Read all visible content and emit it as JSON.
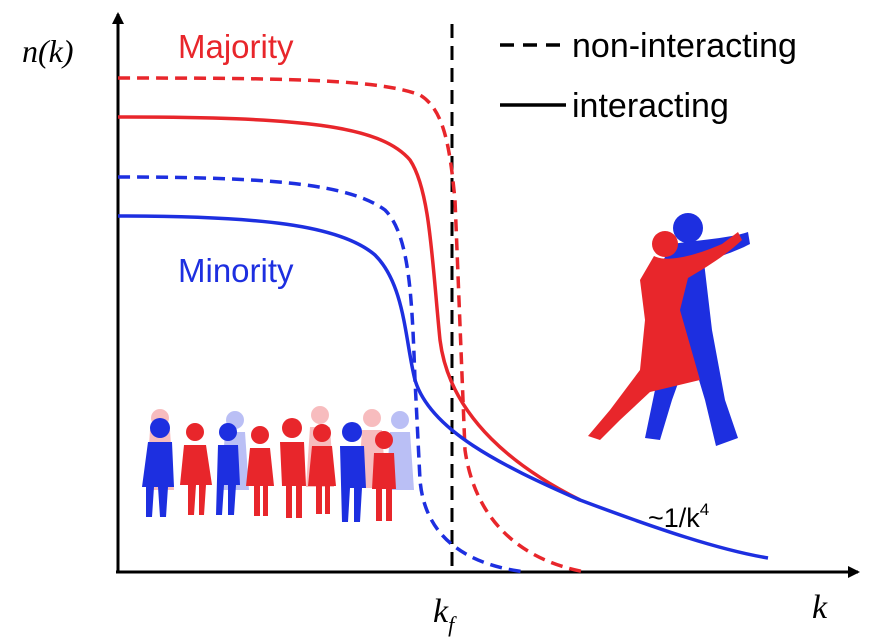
{
  "y_axis_label": "n(k)",
  "x_axis_label": "k",
  "fermi_momentum": {
    "base": "k",
    "subscript": "f"
  },
  "curve_labels": {
    "majority": "Majority",
    "minority": "Minority"
  },
  "legend": {
    "dashed": "non-interacting",
    "solid": "interacting"
  },
  "tail_label": {
    "base": "~1/k",
    "superscript": "4"
  }
}
